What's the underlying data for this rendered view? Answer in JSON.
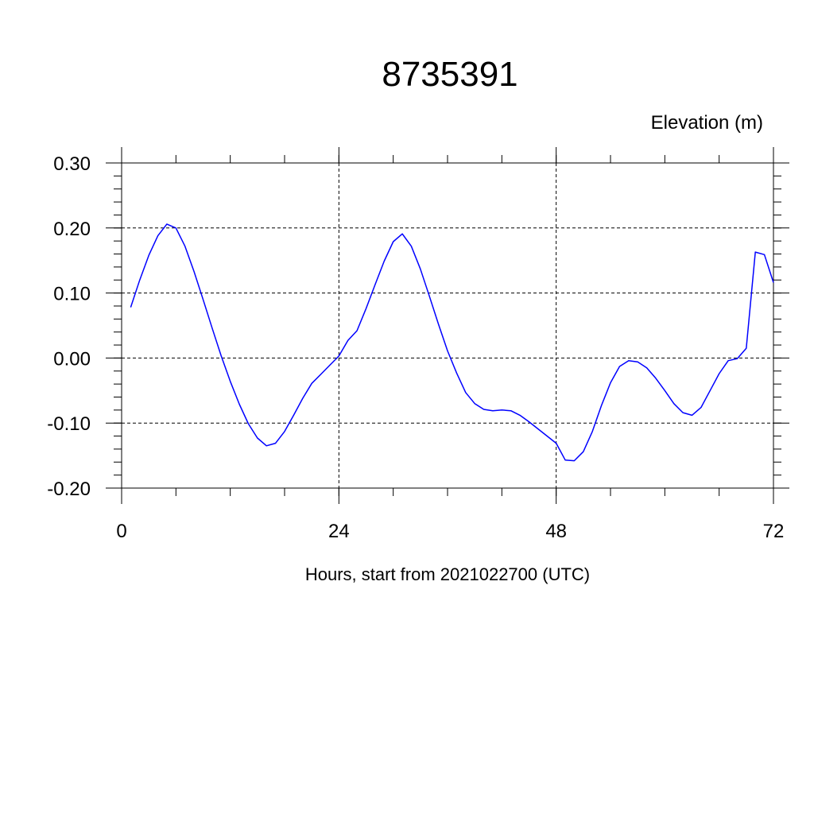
{
  "chart_data": {
    "type": "line",
    "title": "8735391",
    "ylabel": "Elevation (m)",
    "xlabel": "Hours, start from 2021022700 (UTC)",
    "xlim": [
      0,
      72
    ],
    "ylim": [
      -0.2,
      0.3
    ],
    "xticks": [
      0,
      24,
      48,
      72
    ],
    "xtick_labels": [
      "0",
      "24",
      "48",
      "72"
    ],
    "yticks": [
      -0.2,
      -0.1,
      0.0,
      0.1,
      0.2,
      0.3
    ],
    "ytick_labels": [
      "-0.20",
      "-0.10",
      "0.00",
      "0.10",
      "0.20",
      "0.30"
    ],
    "grid": true,
    "series": [
      {
        "color": "#0000ff",
        "x": [
          1,
          2,
          3,
          4,
          5,
          6,
          7,
          8,
          9,
          10,
          11,
          12,
          13,
          14,
          15,
          16,
          17,
          18,
          19,
          20,
          21,
          22,
          23,
          24,
          25,
          26,
          27,
          28,
          29,
          30,
          31,
          32,
          33,
          34,
          35,
          36,
          37,
          38,
          39,
          40,
          41,
          42,
          43,
          44,
          45,
          46,
          47,
          48,
          49,
          50,
          51,
          52,
          53,
          54,
          55,
          56,
          57,
          58,
          59,
          60,
          61,
          62,
          63,
          64,
          65,
          66,
          67,
          68,
          69,
          70,
          71,
          72
        ],
        "y": [
          0.078,
          0.12,
          0.158,
          0.188,
          0.206,
          0.2,
          0.172,
          0.133,
          0.09,
          0.046,
          0.003,
          -0.036,
          -0.071,
          -0.101,
          -0.123,
          -0.135,
          -0.131,
          -0.113,
          -0.088,
          -0.062,
          -0.039,
          -0.025,
          -0.011,
          0.003,
          0.027,
          0.042,
          0.076,
          0.113,
          0.149,
          0.179,
          0.191,
          0.172,
          0.137,
          0.095,
          0.052,
          0.011,
          -0.023,
          -0.053,
          -0.07,
          -0.079,
          -0.081,
          -0.08,
          -0.081,
          -0.088,
          -0.098,
          -0.109,
          -0.12,
          -0.131,
          -0.157,
          -0.158,
          -0.144,
          -0.113,
          -0.073,
          -0.038,
          -0.013,
          -0.004,
          -0.006,
          -0.015,
          -0.031,
          -0.05,
          -0.07,
          -0.084,
          -0.088,
          -0.076,
          -0.05,
          -0.024,
          -0.004,
          -0.001,
          0.015,
          0.163,
          0.159,
          0.116
        ]
      }
    ]
  }
}
